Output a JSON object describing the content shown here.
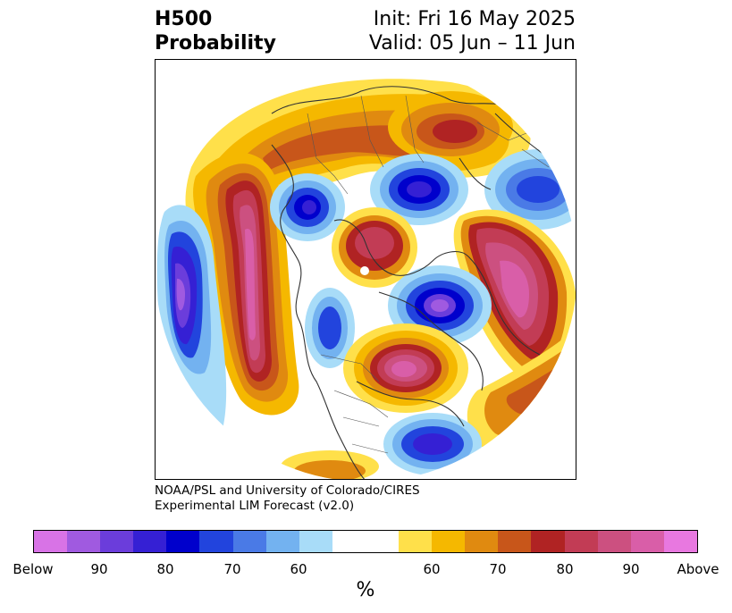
{
  "title": {
    "left_line1": "H500",
    "left_line2": "Probability",
    "right_line1": "Init: Fri 16 May 2025",
    "right_line2": "Valid: 05 Jun – 11 Jun"
  },
  "credit": {
    "line1": "NOAA/PSL and University of Colorado/CIRES",
    "line2": "Experimental LIM Forecast (v2.0)"
  },
  "colorbar": {
    "colors": [
      "#d873e6",
      "#a05ae0",
      "#6b3ddb",
      "#3520d4",
      "#0000cc",
      "#2244dd",
      "#4a7ae6",
      "#73b2f0",
      "#a8dcf8",
      "#ffffff",
      "#ffffff",
      "#ffe04a",
      "#f5b800",
      "#e08a10",
      "#c8561a",
      "#b02323",
      "#c23c55",
      "#cc5080",
      "#d95ea8",
      "#e878e0"
    ],
    "tick_labels": [
      "Below",
      "90",
      "80",
      "70",
      "60",
      "60",
      "70",
      "80",
      "90",
      "Above"
    ],
    "unit": "%"
  },
  "map": {
    "projection": "north-polar-stereographic",
    "field": "H500 probability anomaly"
  }
}
